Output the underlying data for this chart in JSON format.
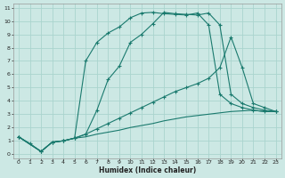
{
  "xlabel": "Humidex (Indice chaleur)",
  "bg_color": "#cce8e4",
  "grid_color": "#aad4ce",
  "line_color": "#1a7a6e",
  "xlim": [
    -0.5,
    23.5
  ],
  "ylim": [
    -0.3,
    11.3
  ],
  "xticks": [
    0,
    1,
    2,
    3,
    4,
    5,
    6,
    7,
    8,
    9,
    10,
    11,
    12,
    13,
    14,
    15,
    16,
    17,
    18,
    19,
    20,
    21,
    22,
    23
  ],
  "yticks": [
    0,
    1,
    2,
    3,
    4,
    5,
    6,
    7,
    8,
    9,
    10,
    11
  ],
  "line1_x": [
    0,
    1,
    2,
    3,
    4,
    5,
    6,
    7,
    8,
    9,
    10,
    11,
    12,
    13,
    14,
    15,
    16,
    17,
    18,
    19,
    20,
    21,
    22,
    23
  ],
  "line1_y": [
    1.3,
    0.8,
    0.2,
    0.9,
    1.0,
    1.2,
    1.5,
    3.3,
    5.6,
    6.6,
    8.4,
    9.0,
    9.8,
    10.65,
    10.55,
    10.5,
    10.45,
    10.6,
    9.7,
    4.5,
    3.8,
    3.5,
    3.3,
    3.2
  ],
  "line2_x": [
    0,
    2,
    3,
    4,
    5,
    6,
    7,
    8,
    9,
    10,
    11,
    12,
    13,
    14,
    15,
    16,
    17,
    18,
    19,
    20,
    21,
    22,
    23
  ],
  "line2_y": [
    1.3,
    0.2,
    0.9,
    1.0,
    1.2,
    7.0,
    8.4,
    9.1,
    9.55,
    10.25,
    10.6,
    10.65,
    10.55,
    10.5,
    10.45,
    10.6,
    9.7,
    4.5,
    3.8,
    3.5,
    3.3,
    3.2,
    3.2
  ],
  "line3_x": [
    0,
    2,
    3,
    4,
    5,
    6,
    7,
    8,
    9,
    10,
    11,
    12,
    13,
    14,
    15,
    16,
    17,
    18,
    19,
    20,
    21,
    22,
    23
  ],
  "line3_y": [
    1.3,
    0.2,
    0.9,
    1.0,
    1.2,
    1.5,
    1.9,
    2.3,
    2.7,
    3.1,
    3.5,
    3.9,
    4.3,
    4.7,
    5.0,
    5.3,
    5.7,
    6.5,
    8.8,
    6.5,
    3.8,
    3.5,
    3.2
  ],
  "line4_x": [
    0,
    2,
    3,
    4,
    5,
    6,
    7,
    8,
    9,
    10,
    11,
    12,
    13,
    14,
    15,
    16,
    17,
    18,
    19,
    20,
    21,
    22,
    23
  ],
  "line4_y": [
    1.3,
    0.2,
    0.9,
    1.0,
    1.2,
    1.3,
    1.5,
    1.65,
    1.8,
    2.0,
    2.15,
    2.3,
    2.5,
    2.65,
    2.8,
    2.9,
    3.0,
    3.1,
    3.2,
    3.25,
    3.3,
    3.2,
    3.2
  ]
}
